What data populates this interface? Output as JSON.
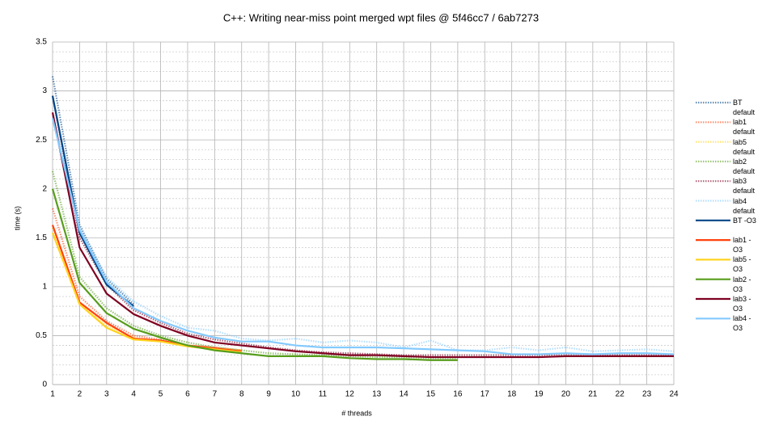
{
  "chart_data": {
    "type": "line",
    "title": "C++: Writing near-miss point merged wpt files @ 5f46cc7 / 6ab7273",
    "x_label": "# threads",
    "y_label": "time (s)",
    "x": [
      1,
      2,
      3,
      4,
      5,
      6,
      7,
      8,
      9,
      10,
      11,
      12,
      13,
      14,
      15,
      16,
      17,
      18,
      19,
      20,
      21,
      22,
      23,
      24
    ],
    "xlim": [
      1,
      24
    ],
    "xticks": [
      1,
      2,
      3,
      4,
      5,
      6,
      7,
      8,
      9,
      10,
      11,
      12,
      13,
      14,
      15,
      16,
      17,
      18,
      19,
      20,
      21,
      22,
      23,
      24
    ],
    "ylim": [
      0,
      3.5
    ],
    "yticks": [
      0,
      0.5,
      1,
      1.5,
      2,
      2.5,
      3,
      3.5
    ],
    "grid": true,
    "minor_grid": true,
    "legend": "right",
    "series": [
      {
        "name": "BT default",
        "color": "#004586",
        "line_style": "dotted",
        "values": [
          3.15,
          1.63,
          1.08,
          0.82,
          null,
          null,
          null,
          null,
          null,
          null,
          null,
          null,
          null,
          null,
          null,
          null,
          null,
          null,
          null,
          null,
          null,
          null,
          null,
          null
        ]
      },
      {
        "name": "lab1 default",
        "color": "#ff420e",
        "line_style": "dotted",
        "values": [
          1.8,
          0.9,
          0.65,
          0.5,
          0.46,
          0.4,
          0.38,
          0.35,
          null,
          null,
          null,
          null,
          null,
          null,
          null,
          null,
          null,
          null,
          null,
          null,
          null,
          null,
          null,
          null
        ]
      },
      {
        "name": "lab5 default",
        "color": "#ffd320",
        "line_style": "dotted",
        "values": [
          1.6,
          0.82,
          0.6,
          0.48,
          0.44,
          0.4,
          0.37,
          0.35,
          null,
          null,
          null,
          null,
          null,
          null,
          null,
          null,
          null,
          null,
          null,
          null,
          null,
          null,
          null,
          null
        ]
      },
      {
        "name": "lab2 default",
        "color": "#579d1c",
        "line_style": "dotted",
        "values": [
          2.18,
          1.1,
          0.78,
          0.6,
          0.5,
          0.43,
          0.38,
          0.35,
          0.32,
          0.31,
          0.3,
          0.29,
          0.28,
          0.28,
          0.27,
          0.27,
          null,
          null,
          null,
          null,
          null,
          null,
          null,
          null
        ]
      },
      {
        "name": "lab3 default",
        "color": "#7e0021",
        "line_style": "dotted",
        "values": [
          2.95,
          1.5,
          1.02,
          0.76,
          0.63,
          0.52,
          0.46,
          0.42,
          0.38,
          0.35,
          0.33,
          0.32,
          0.31,
          0.3,
          0.3,
          0.3,
          0.3,
          0.3,
          0.3,
          0.31,
          0.31,
          0.3,
          0.3,
          0.3
        ]
      },
      {
        "name": "lab4 default",
        "color": "#83caff",
        "line_style": "dotted",
        "values": [
          2.75,
          1.6,
          1.1,
          0.85,
          0.7,
          0.58,
          0.55,
          0.47,
          0.45,
          0.47,
          0.43,
          0.45,
          0.43,
          0.38,
          0.45,
          0.35,
          0.35,
          0.38,
          0.35,
          0.38,
          0.34,
          0.35,
          0.36,
          0.34
        ]
      },
      {
        "name": "BT -O3",
        "color": "#004586",
        "line_style": "solid",
        "values": [
          2.95,
          1.55,
          1.02,
          0.8,
          null,
          null,
          null,
          null,
          null,
          null,
          null,
          null,
          null,
          null,
          null,
          null,
          null,
          null,
          null,
          null,
          null,
          null,
          null,
          null
        ]
      },
      {
        "name": "lab1 -O3",
        "color": "#ff420e",
        "line_style": "solid",
        "values": [
          1.63,
          0.84,
          0.63,
          0.47,
          0.45,
          0.4,
          0.37,
          0.34,
          null,
          null,
          null,
          null,
          null,
          null,
          null,
          null,
          null,
          null,
          null,
          null,
          null,
          null,
          null,
          null
        ]
      },
      {
        "name": "lab5 -O3",
        "color": "#ffd320",
        "line_style": "solid",
        "values": [
          1.55,
          0.82,
          0.58,
          0.46,
          0.44,
          0.39,
          0.36,
          0.33,
          null,
          null,
          null,
          null,
          null,
          null,
          null,
          null,
          null,
          null,
          null,
          null,
          null,
          null,
          null,
          null
        ]
      },
      {
        "name": "lab2 -O3",
        "color": "#579d1c",
        "line_style": "solid",
        "values": [
          2.0,
          1.04,
          0.73,
          0.57,
          0.48,
          0.4,
          0.35,
          0.32,
          0.29,
          0.29,
          0.29,
          0.27,
          0.26,
          0.26,
          0.25,
          0.25,
          null,
          null,
          null,
          null,
          null,
          null,
          null,
          null
        ]
      },
      {
        "name": "lab3 -O3",
        "color": "#7e0021",
        "line_style": "solid",
        "values": [
          2.78,
          1.4,
          0.93,
          0.72,
          0.6,
          0.5,
          0.43,
          0.4,
          0.37,
          0.34,
          0.32,
          0.3,
          0.3,
          0.29,
          0.28,
          0.28,
          0.28,
          0.28,
          0.28,
          0.29,
          0.29,
          0.29,
          0.29,
          0.29
        ]
      },
      {
        "name": "lab4 -O3",
        "color": "#83caff",
        "line_style": "solid",
        "values": [
          2.72,
          1.58,
          1.05,
          0.78,
          0.65,
          0.55,
          0.48,
          0.44,
          0.44,
          0.4,
          0.38,
          0.38,
          0.38,
          0.37,
          0.36,
          0.35,
          0.34,
          0.31,
          0.31,
          0.32,
          0.31,
          0.32,
          0.32,
          0.31
        ]
      }
    ]
  }
}
